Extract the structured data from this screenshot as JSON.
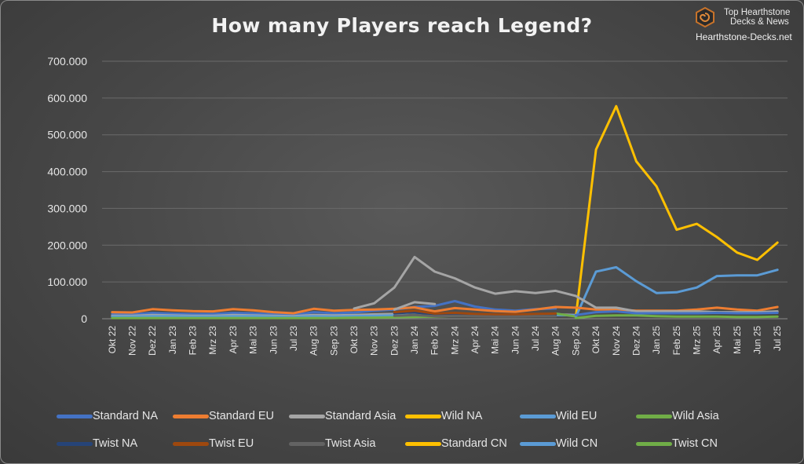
{
  "brand": {
    "line1": "Top Hearthstone",
    "line2": "Decks & News",
    "url": "Hearthstone-Decks.net",
    "logo_icon": "hexagon-spiral-logo-icon",
    "logo_color": "#c8732a"
  },
  "chart_data": {
    "type": "line",
    "title": "How many Players reach Legend?",
    "xlabel": "",
    "ylabel": "",
    "ylim": [
      0,
      700000
    ],
    "yticks": [
      0,
      100000,
      200000,
      300000,
      400000,
      500000,
      600000,
      700000
    ],
    "ytick_labels": [
      "0",
      "100.000",
      "200.000",
      "300.000",
      "400.000",
      "500.000",
      "600.000",
      "700.000"
    ],
    "grid": true,
    "legend_position": "bottom",
    "categories": [
      "Okt 22",
      "Nov 22",
      "Dez 22",
      "Jan 23",
      "Feb 23",
      "Mrz 23",
      "Apr 23",
      "Mai 23",
      "Jun 23",
      "Jul 23",
      "Aug 23",
      "Sep 23",
      "Okt 23",
      "Nov 23",
      "Dez 23",
      "Jan 24",
      "Feb 24",
      "Mrz 24",
      "Apr 24",
      "Mai 24",
      "Jun 24",
      "Jul 24",
      "Aug 24",
      "Sep 24",
      "Okt 24",
      "Nov 24",
      "Dez 24",
      "Jan 25",
      "Feb 25",
      "Mrz 25",
      "Apr 25",
      "Mai 25",
      "Jun 25",
      "Jul 25"
    ],
    "series": [
      {
        "name": "Standard NA",
        "color": "#4472c4",
        "values": [
          12000,
          12000,
          16000,
          14000,
          13000,
          13000,
          16000,
          15000,
          12000,
          10000,
          18000,
          15000,
          17000,
          22000,
          25000,
          32000,
          35000,
          48000,
          33000,
          25000,
          22000,
          26000,
          28000,
          null,
          null,
          null,
          null,
          null,
          null,
          null,
          null,
          null,
          null,
          null
        ]
      },
      {
        "name": "Standard EU",
        "color": "#ed7d31",
        "values": [
          18000,
          17000,
          26000,
          23000,
          21000,
          20000,
          26000,
          23000,
          18000,
          15000,
          27000,
          22000,
          24000,
          25000,
          27000,
          31000,
          20000,
          29000,
          25000,
          21000,
          19000,
          25000,
          32000,
          30000,
          null,
          null,
          null,
          null,
          null,
          null,
          null,
          null,
          null,
          null
        ]
      },
      {
        "name": "Standard Asia",
        "color": "#a5a5a5",
        "values": [
          8000,
          8000,
          10000,
          9000,
          8000,
          8000,
          10000,
          9000,
          8000,
          7000,
          10000,
          9000,
          10000,
          12000,
          13000,
          18000,
          13000,
          15000,
          12000,
          10000,
          10000,
          11000,
          12000,
          10000,
          null,
          null,
          null,
          null,
          null,
          null,
          null,
          null,
          null,
          null
        ]
      },
      {
        "name": "Wild NA",
        "color": "#ffc000",
        "values": [
          null,
          null,
          null,
          null,
          null,
          null,
          null,
          null,
          null,
          null,
          null,
          null,
          null,
          null,
          null,
          null,
          null,
          null,
          null,
          null,
          null,
          null,
          null,
          null,
          null,
          null,
          null,
          null,
          null,
          null,
          null,
          null,
          null,
          null
        ]
      },
      {
        "name": "Wild EU",
        "color": "#5b9bd5",
        "values": [
          6000,
          6000,
          7000,
          7000,
          6000,
          6000,
          7000,
          7000,
          6000,
          5000,
          7000,
          6000,
          7000,
          8000,
          9000,
          10000,
          9000,
          10000,
          9000,
          8000,
          8000,
          9000,
          10000,
          9000,
          null,
          null,
          null,
          null,
          null,
          null,
          null,
          null,
          null,
          null
        ]
      },
      {
        "name": "Wild Asia",
        "color": "#70ad47",
        "values": [
          2000,
          2000,
          2000,
          2000,
          2000,
          2000,
          2000,
          2000,
          2000,
          2000,
          2000,
          2000,
          3000,
          3000,
          4000,
          5000,
          6000,
          8000,
          8000,
          8000,
          10000,
          11000,
          14000,
          6000,
          null,
          null,
          null,
          null,
          null,
          null,
          null,
          null,
          null,
          null
        ]
      },
      {
        "name": "Twist NA",
        "color": "#264478",
        "values": [
          null,
          null,
          null,
          null,
          null,
          null,
          null,
          null,
          null,
          null,
          null,
          null,
          null,
          null,
          15000,
          18000,
          10000,
          12000,
          10000,
          9000,
          9000,
          10000,
          11000,
          null,
          null,
          null,
          null,
          null,
          null,
          null,
          null,
          null,
          null,
          null
        ]
      },
      {
        "name": "Twist EU",
        "color": "#9e480e",
        "values": [
          null,
          null,
          null,
          null,
          null,
          null,
          null,
          null,
          null,
          null,
          null,
          null,
          null,
          null,
          18000,
          22000,
          14000,
          16000,
          13000,
          12000,
          12000,
          13000,
          14000,
          null,
          null,
          null,
          null,
          null,
          null,
          null,
          null,
          null,
          null,
          null
        ]
      },
      {
        "name": "Twist Asia",
        "color": "#636363",
        "values": [
          null,
          null,
          null,
          null,
          null,
          null,
          null,
          null,
          null,
          null,
          null,
          null,
          null,
          null,
          8000,
          10000,
          7000,
          8000,
          7000,
          6000,
          6000,
          7000,
          7000,
          null,
          null,
          null,
          null,
          null,
          null,
          null,
          null,
          null,
          null,
          null
        ]
      },
      {
        "name": "Standard CN",
        "color": "#ffc000",
        "values": [
          null,
          null,
          null,
          null,
          null,
          null,
          null,
          null,
          null,
          null,
          null,
          null,
          null,
          null,
          null,
          null,
          null,
          null,
          null,
          null,
          null,
          null,
          null,
          5000,
          460000,
          578000,
          428000,
          360000,
          242000,
          258000,
          222000,
          180000,
          160000,
          207000
        ]
      },
      {
        "name": "Wild CN",
        "color": "#5b9bd5",
        "values": [
          null,
          null,
          null,
          null,
          null,
          null,
          null,
          null,
          null,
          null,
          null,
          null,
          null,
          null,
          null,
          null,
          null,
          null,
          null,
          null,
          null,
          null,
          null,
          5000,
          128000,
          140000,
          102000,
          70000,
          72000,
          85000,
          116000,
          118000,
          118000,
          133000
        ]
      },
      {
        "name": "Twist CN",
        "color": "#70ad47",
        "values": [
          null,
          null,
          null,
          null,
          null,
          null,
          null,
          null,
          null,
          null,
          null,
          null,
          null,
          null,
          null,
          null,
          null,
          null,
          null,
          null,
          null,
          null,
          null,
          2000,
          8000,
          9000,
          9000,
          7000,
          6000,
          6000,
          6000,
          5000,
          5000,
          6000
        ]
      },
      {
        "name": "",
        "color": "#ed7d31",
        "values": [
          null,
          null,
          null,
          null,
          null,
          null,
          null,
          null,
          null,
          null,
          null,
          null,
          null,
          null,
          null,
          null,
          null,
          null,
          null,
          null,
          null,
          null,
          null,
          30000,
          25000,
          25000,
          22000,
          22000,
          22000,
          25000,
          30000,
          25000,
          22000,
          32000
        ]
      },
      {
        "name": "",
        "color": "#a5a5a5",
        "values": [
          null,
          null,
          null,
          null,
          null,
          null,
          null,
          null,
          null,
          null,
          null,
          null,
          null,
          null,
          25000,
          45000,
          40000,
          null,
          null,
          null,
          null,
          null,
          null,
          null,
          null,
          null,
          null,
          null,
          null,
          null,
          null,
          null,
          null,
          null
        ]
      },
      {
        "name": "",
        "color": "#a5a5a5",
        "values": [
          null,
          null,
          null,
          null,
          null,
          null,
          null,
          null,
          null,
          null,
          null,
          null,
          28000,
          42000,
          85000,
          168000,
          128000,
          110000,
          85000,
          68000,
          75000,
          70000,
          76000,
          62000,
          30000,
          30000,
          20000,
          20000,
          20000,
          20000,
          18000,
          18000,
          18000,
          20000
        ]
      },
      {
        "name": "",
        "color": "#4472c4",
        "values": [
          null,
          null,
          null,
          null,
          null,
          null,
          null,
          null,
          null,
          null,
          null,
          null,
          null,
          null,
          null,
          null,
          null,
          null,
          null,
          null,
          null,
          null,
          null,
          10000,
          18000,
          20000,
          15000,
          15000,
          15000,
          15000,
          16000,
          15000,
          15000,
          16000
        ]
      }
    ]
  }
}
